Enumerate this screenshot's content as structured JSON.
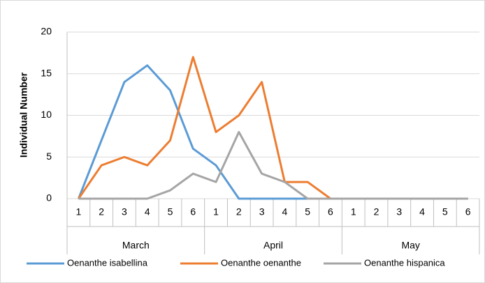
{
  "chart_data": {
    "type": "line",
    "y_label": "Individual Number",
    "categories": [
      "1",
      "2",
      "3",
      "4",
      "5",
      "6",
      "1",
      "2",
      "3",
      "4",
      "5",
      "6",
      "1",
      "2",
      "3",
      "4",
      "5",
      "6"
    ],
    "groups": [
      "March",
      "April",
      "May"
    ],
    "series": [
      {
        "name": "Oenanthe isabellina",
        "color": "#5b9bd5",
        "values": [
          0,
          7,
          14,
          16,
          13,
          6,
          4,
          0,
          0,
          0,
          0,
          0,
          0,
          0,
          0,
          0,
          0,
          0
        ]
      },
      {
        "name": "Oenanthe oenanthe",
        "color": "#ed7d31",
        "values": [
          0,
          4,
          5,
          4,
          7,
          17,
          8,
          10,
          14,
          2,
          2,
          0,
          0,
          0,
          0,
          0,
          0,
          0
        ]
      },
      {
        "name": "Oenanthe hispanica",
        "color": "#a5a5a5",
        "values": [
          0,
          0,
          0,
          0,
          1,
          3,
          2,
          8,
          3,
          2,
          0,
          0,
          0,
          0,
          0,
          0,
          0,
          0
        ]
      }
    ],
    "ylim": [
      0,
      20
    ],
    "yticks": [
      0,
      5,
      10,
      15,
      20
    ],
    "grid": true,
    "legend": "bottom"
  }
}
